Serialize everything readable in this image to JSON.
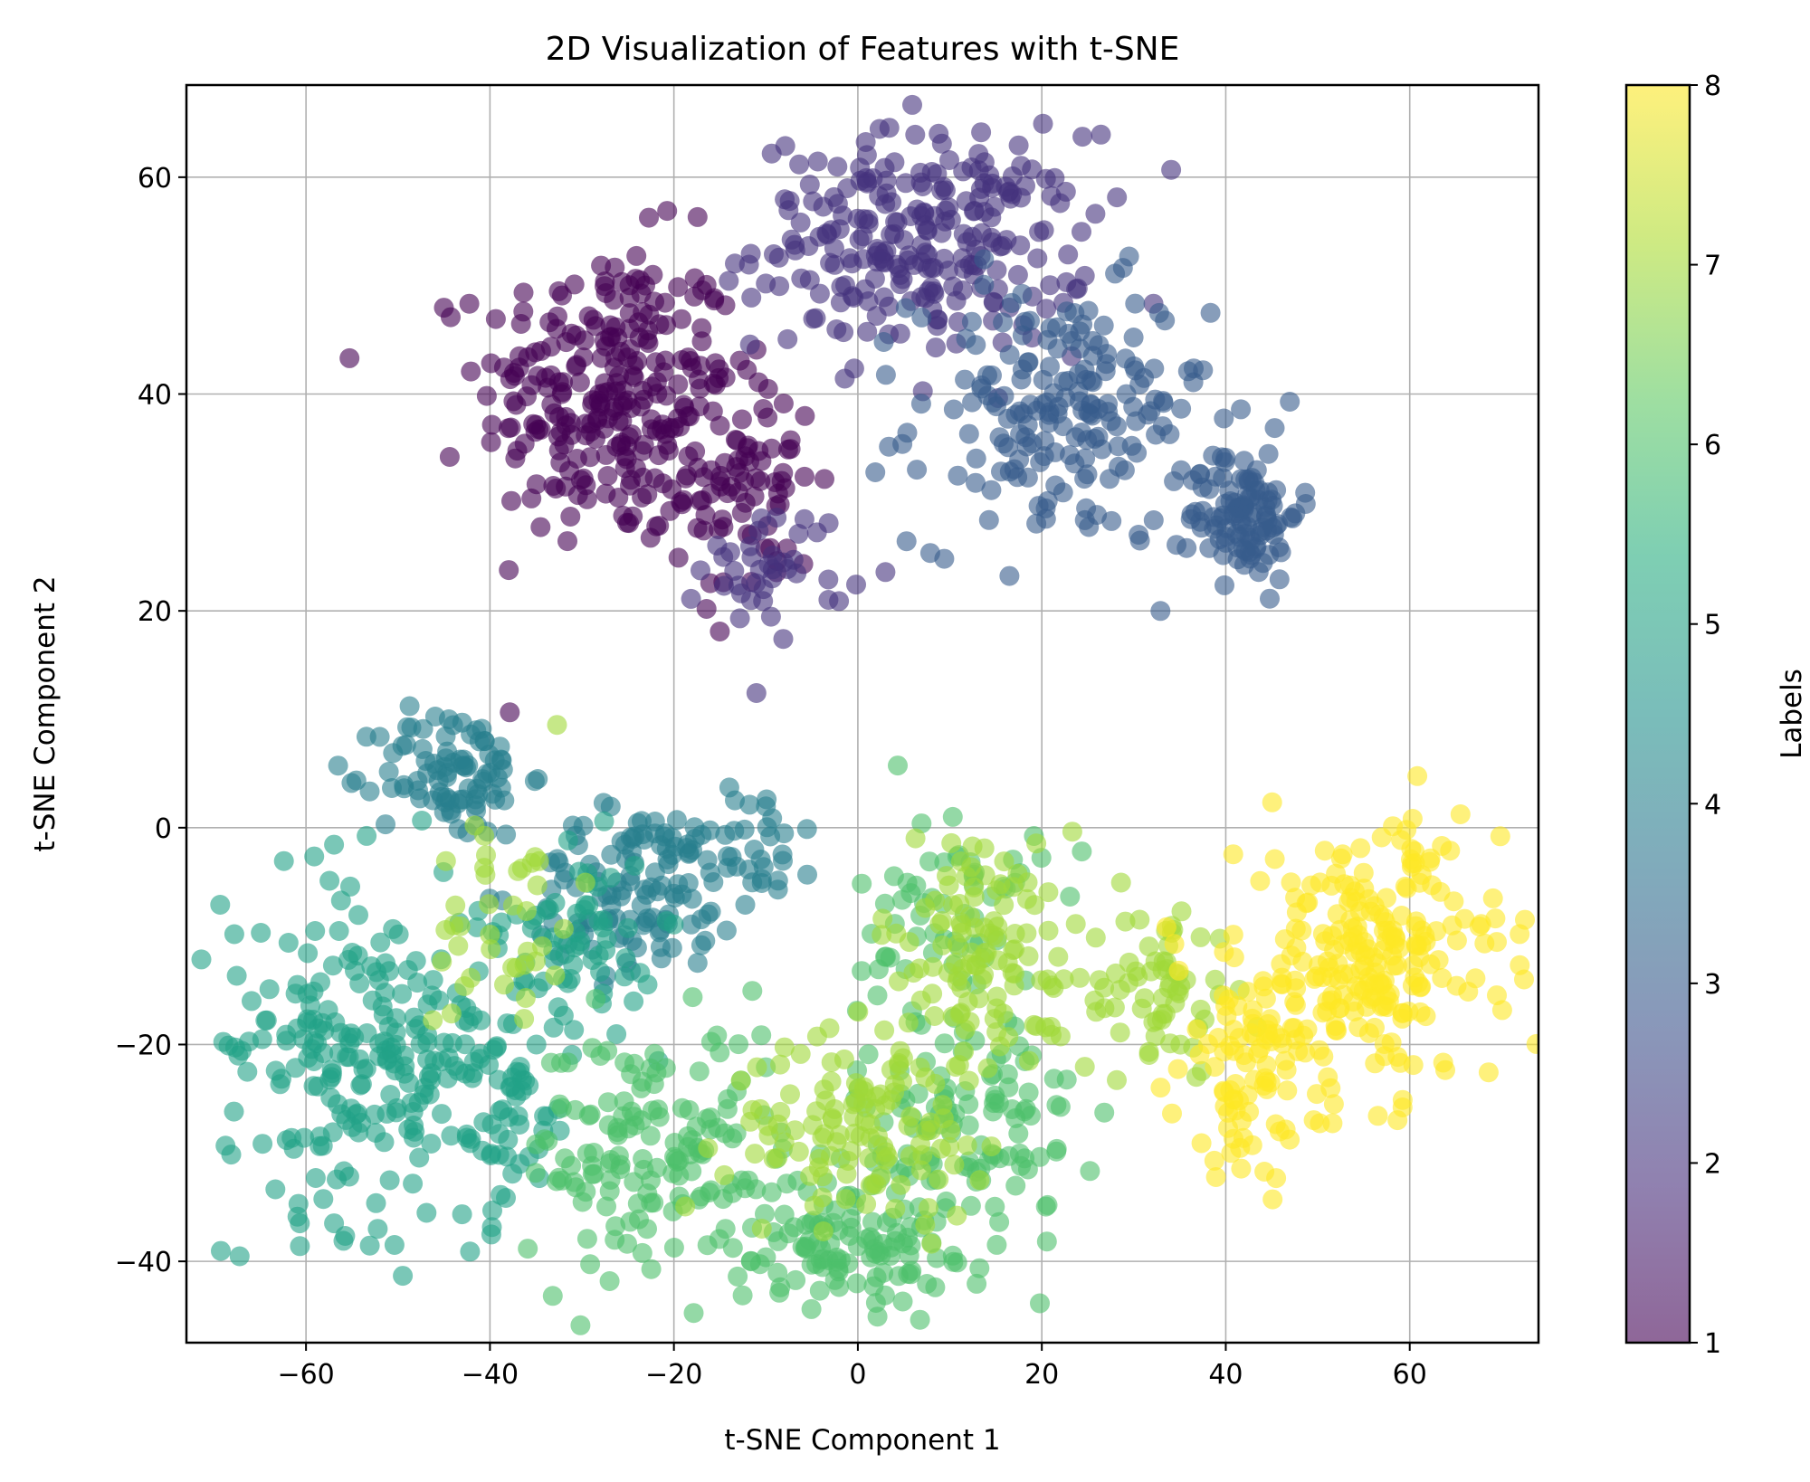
{
  "chart_data": {
    "type": "scatter",
    "title": "2D Visualization of Features with t-SNE",
    "xlabel": "t-SNE Component 1",
    "ylabel": "t-SNE Component 2",
    "xlim": [
      -73,
      74
    ],
    "ylim": [
      -47.5,
      68.5
    ],
    "xticks": [
      -60,
      -40,
      -20,
      0,
      20,
      40,
      60
    ],
    "yticks": [
      -40,
      -20,
      0,
      20,
      40,
      60
    ],
    "xtick_labels": [
      "−60",
      "−40",
      "−20",
      "0",
      "20",
      "40",
      "60"
    ],
    "ytick_labels": [
      "−40",
      "−20",
      "0",
      "20",
      "40",
      "60"
    ],
    "grid": true,
    "point_alpha": 0.6,
    "colormap": "viridis",
    "colorbar": {
      "label": "Labels",
      "min": 1,
      "max": 8,
      "ticks": [
        "1",
        "2",
        "3",
        "4",
        "5",
        "6",
        "7",
        "8"
      ]
    },
    "clusters": [
      {
        "label": 1,
        "cx": -27,
        "cy": 40,
        "sx": 7,
        "sy": 7,
        "n": 260
      },
      {
        "label": 1,
        "cx": -12,
        "cy": 32,
        "sx": 4,
        "sy": 6,
        "n": 80
      },
      {
        "label": 2,
        "cx": 7,
        "cy": 54,
        "sx": 9,
        "sy": 5,
        "n": 250
      },
      {
        "label": 2,
        "cx": -9,
        "cy": 24,
        "sx": 4,
        "sy": 3,
        "n": 40
      },
      {
        "label": 3,
        "cx": 22,
        "cy": 38,
        "sx": 8,
        "sy": 6,
        "n": 190
      },
      {
        "label": 3,
        "cx": 42,
        "cy": 29,
        "sx": 3,
        "sy": 3,
        "n": 110
      },
      {
        "label": 4,
        "cx": -44,
        "cy": 5,
        "sx": 4,
        "sy": 3,
        "n": 90
      },
      {
        "label": 4,
        "cx": -24,
        "cy": -6,
        "sx": 6,
        "sy": 4,
        "n": 110
      },
      {
        "label": 4,
        "cx": -12,
        "cy": -1,
        "sx": 4,
        "sy": 3,
        "n": 40
      },
      {
        "label": 5,
        "cx": -55,
        "cy": -20,
        "sx": 7,
        "sy": 8,
        "n": 200
      },
      {
        "label": 5,
        "cx": -40,
        "cy": -25,
        "sx": 5,
        "sy": 6,
        "n": 90
      },
      {
        "label": 5,
        "cx": -30,
        "cy": -10,
        "sx": 4,
        "sy": 4,
        "n": 60
      },
      {
        "label": 6,
        "cx": -22,
        "cy": -30,
        "sx": 7,
        "sy": 6,
        "n": 150
      },
      {
        "label": 6,
        "cx": -2,
        "cy": -38,
        "sx": 6,
        "sy": 3,
        "n": 110
      },
      {
        "label": 6,
        "cx": 12,
        "cy": -28,
        "sx": 6,
        "sy": 6,
        "n": 120
      },
      {
        "label": 6,
        "cx": 10,
        "cy": -8,
        "sx": 5,
        "sy": 5,
        "n": 60
      },
      {
        "label": 7,
        "cx": 14,
        "cy": -12,
        "sx": 6,
        "sy": 6,
        "n": 130
      },
      {
        "label": 7,
        "cx": 0,
        "cy": -28,
        "sx": 7,
        "sy": 4,
        "n": 110
      },
      {
        "label": 7,
        "cx": 33,
        "cy": -15,
        "sx": 4,
        "sy": 4,
        "n": 60
      },
      {
        "label": 7,
        "cx": -38,
        "cy": -8,
        "sx": 4,
        "sy": 6,
        "n": 40
      },
      {
        "label": 8,
        "cx": 56,
        "cy": -12,
        "sx": 7,
        "sy": 6,
        "n": 230
      },
      {
        "label": 8,
        "cx": 43,
        "cy": -22,
        "sx": 4,
        "sy": 5,
        "n": 90
      }
    ]
  }
}
